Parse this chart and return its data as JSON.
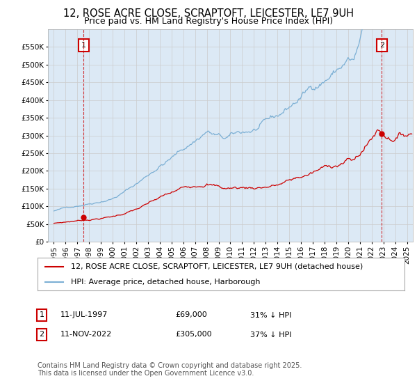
{
  "title": "12, ROSE ACRE CLOSE, SCRAPTOFT, LEICESTER, LE7 9UH",
  "subtitle": "Price paid vs. HM Land Registry's House Price Index (HPI)",
  "legend_line1": "12, ROSE ACRE CLOSE, SCRAPTOFT, LEICESTER, LE7 9UH (detached house)",
  "legend_line2": "HPI: Average price, detached house, Harborough",
  "annotation1_date": "11-JUL-1997",
  "annotation1_price": "£69,000",
  "annotation1_hpi": "31% ↓ HPI",
  "annotation2_date": "11-NOV-2022",
  "annotation2_price": "£305,000",
  "annotation2_hpi": "37% ↓ HPI",
  "footer": "Contains HM Land Registry data © Crown copyright and database right 2025.\nThis data is licensed under the Open Government Licence v3.0.",
  "vline1_x": 1997.54,
  "vline2_x": 2022.87,
  "point1_x": 1997.54,
  "point1_y": 69000,
  "point2_x": 2022.87,
  "point2_y": 305000,
  "ylim": [
    0,
    600000
  ],
  "xlim": [
    1994.5,
    2025.5
  ],
  "red_color": "#cc0000",
  "blue_color": "#7bafd4",
  "vline_color": "#cc0000",
  "grid_color": "#cccccc",
  "plot_bg_color": "#dce9f5",
  "background_color": "#ffffff",
  "title_fontsize": 10.5,
  "subtitle_fontsize": 9,
  "axis_fontsize": 7.5,
  "legend_fontsize": 8,
  "footer_fontsize": 7
}
